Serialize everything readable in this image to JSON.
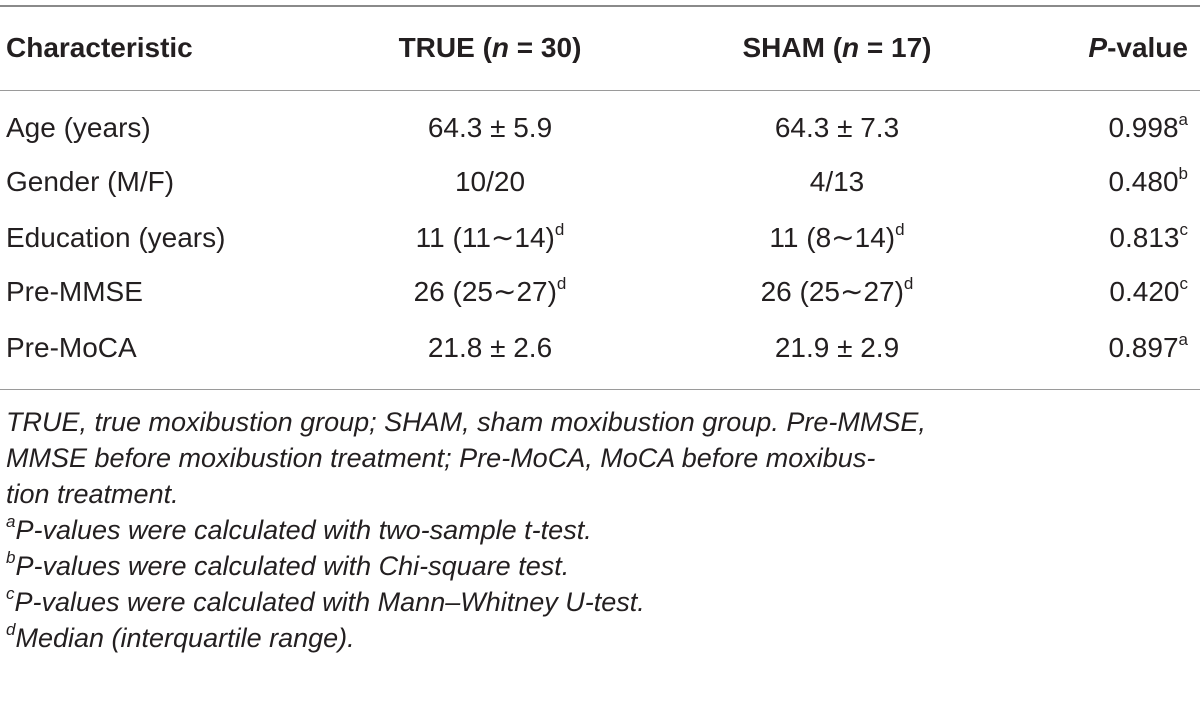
{
  "table": {
    "headers": {
      "characteristic": "Characteristic",
      "true_prefix": "TRUE (",
      "true_n": "n",
      "true_suffix": " = 30)",
      "sham_prefix": "SHAM (",
      "sham_n": "n",
      "sham_suffix": " = 17)",
      "p_italic": "P",
      "p_rest": "-value"
    },
    "rows": [
      {
        "label": "Age (years)",
        "true": "64.3 ± 5.9",
        "true_sup": "",
        "sham": "64.3 ± 7.3",
        "sham_sup": "",
        "p": "0.998",
        "p_sup": "a"
      },
      {
        "label": "Gender (M/F)",
        "true": "10/20",
        "true_sup": "",
        "sham": "4/13",
        "sham_sup": "",
        "p": "0.480",
        "p_sup": "b"
      },
      {
        "label": "Education (years)",
        "true": "11 (11∼14)",
        "true_sup": "d",
        "sham": "11 (8∼14)",
        "sham_sup": "d",
        "p": "0.813",
        "p_sup": "c"
      },
      {
        "label": "Pre-MMSE",
        "true": "26 (25∼27)",
        "true_sup": "d",
        "sham": "26 (25∼27)",
        "sham_sup": "d",
        "p": "0.420",
        "p_sup": "c"
      },
      {
        "label": "Pre-MoCA",
        "true": "21.8 ± 2.6",
        "true_sup": "",
        "sham": "21.9 ± 2.9",
        "sham_sup": "",
        "p": "0.897",
        "p_sup": "a"
      }
    ]
  },
  "notes": {
    "abbreviations_line1": "TRUE, true moxibustion group; SHAM, sham moxibustion group. Pre-MMSE,",
    "abbreviations_line2": "MMSE before moxibustion treatment; Pre-MoCA, MoCA before moxibus-",
    "abbreviations_line3": "tion treatment.",
    "footnotes": [
      {
        "mark": "a",
        "text": "P-values were calculated with two-sample t-test."
      },
      {
        "mark": "b",
        "text": "P-values were calculated with Chi-square test."
      },
      {
        "mark": "c",
        "text": "P-values were calculated with Mann–Whitney U-test."
      },
      {
        "mark": "d",
        "text": "Median (interquartile range)."
      }
    ]
  }
}
